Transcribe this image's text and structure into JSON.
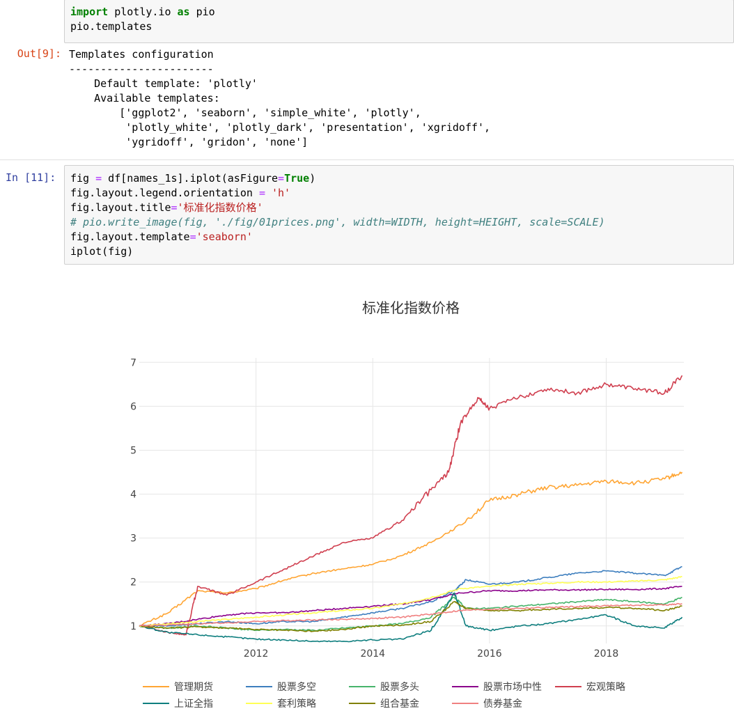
{
  "cell1": {
    "code_lines": [
      [
        {
          "t": "import",
          "c": "kw"
        },
        {
          "t": " plotly.io ",
          "c": ""
        },
        {
          "t": "as",
          "c": "kw"
        },
        {
          "t": " pio",
          "c": ""
        }
      ],
      [
        {
          "t": "pio.templates",
          "c": ""
        }
      ]
    ]
  },
  "out9": {
    "prompt": "Out[9]:",
    "lines": [
      "Templates configuration",
      "-----------------------",
      "    Default template: 'plotly'",
      "    Available templates:",
      "        ['ggplot2', 'seaborn', 'simple_white', 'plotly',",
      "         'plotly_white', 'plotly_dark', 'presentation', 'xgridoff',",
      "         'ygridoff', 'gridon', 'none']"
    ]
  },
  "cell11": {
    "prompt": "In  [11]:",
    "code_lines": [
      [
        {
          "t": "fig ",
          "c": ""
        },
        {
          "t": "=",
          "c": "op"
        },
        {
          "t": " df[names_1s].iplot(asFigure",
          "c": ""
        },
        {
          "t": "=",
          "c": "op"
        },
        {
          "t": "True",
          "c": "kw"
        },
        {
          "t": ")",
          "c": ""
        }
      ],
      [
        {
          "t": "fig.layout.legend.orientation ",
          "c": ""
        },
        {
          "t": "=",
          "c": "op"
        },
        {
          "t": " ",
          "c": ""
        },
        {
          "t": "'h'",
          "c": "str"
        }
      ],
      [
        {
          "t": "fig.layout.title",
          "c": ""
        },
        {
          "t": "=",
          "c": "op"
        },
        {
          "t": "'标准化指数价格'",
          "c": "str"
        }
      ],
      [
        {
          "t": "# pio.write_image(fig, './fig/01prices.png', width=WIDTH, height=HEIGHT, scale=SCALE)",
          "c": "cmt"
        }
      ],
      [
        {
          "t": "fig.layout.template",
          "c": ""
        },
        {
          "t": "=",
          "c": "op"
        },
        {
          "t": "'seaborn'",
          "c": "str"
        }
      ],
      [
        {
          "t": "iplot(fig)",
          "c": ""
        }
      ]
    ]
  },
  "chart_data": {
    "type": "line",
    "title": "标准化指数价格",
    "xlabel": "",
    "ylabel": "",
    "xlim": [
      2010.0,
      2019.33
    ],
    "ylim": [
      0.6,
      7.1
    ],
    "xticks": [
      2012,
      2014,
      2016,
      2018
    ],
    "yticks": [
      1,
      2,
      3,
      4,
      5,
      6,
      7
    ],
    "grid": true,
    "legend_position": "bottom",
    "series": [
      {
        "name": "管理期货",
        "color": "#FFA533",
        "x": [
          2010.0,
          2010.5,
          2011.0,
          2011.5,
          2012.0,
          2012.5,
          2013.0,
          2013.5,
          2014.0,
          2014.5,
          2015.0,
          2015.5,
          2016.0,
          2016.5,
          2017.0,
          2017.5,
          2018.0,
          2018.5,
          2019.0,
          2019.3
        ],
        "y": [
          1.0,
          1.3,
          1.8,
          1.75,
          1.85,
          2.05,
          2.2,
          2.3,
          2.4,
          2.6,
          2.9,
          3.3,
          3.85,
          4.0,
          4.15,
          4.2,
          4.3,
          4.25,
          4.35,
          4.5
        ]
      },
      {
        "name": "股票多空",
        "color": "#3D7EBE",
        "x": [
          2010.0,
          2010.5,
          2011.0,
          2011.5,
          2012.0,
          2012.5,
          2013.0,
          2013.5,
          2014.0,
          2014.5,
          2015.0,
          2015.4,
          2015.6,
          2016.0,
          2016.5,
          2017.0,
          2017.5,
          2018.0,
          2018.5,
          2019.0,
          2019.3
        ],
        "y": [
          1.0,
          1.0,
          1.05,
          1.1,
          1.05,
          1.1,
          1.1,
          1.2,
          1.3,
          1.4,
          1.55,
          1.8,
          2.05,
          1.95,
          2.0,
          2.1,
          2.2,
          2.25,
          2.2,
          2.15,
          2.35
        ]
      },
      {
        "name": "股票多头",
        "color": "#47B46B",
        "x": [
          2010.0,
          2010.5,
          2011.0,
          2011.5,
          2012.0,
          2012.5,
          2013.0,
          2013.5,
          2014.0,
          2014.5,
          2015.0,
          2015.4,
          2015.6,
          2016.0,
          2016.5,
          2017.0,
          2017.5,
          2018.0,
          2018.5,
          2019.0,
          2019.3
        ],
        "y": [
          1.0,
          0.95,
          1.0,
          0.95,
          0.9,
          0.92,
          0.9,
          0.95,
          1.0,
          1.05,
          1.2,
          1.65,
          1.4,
          1.4,
          1.45,
          1.5,
          1.55,
          1.6,
          1.55,
          1.5,
          1.65
        ]
      },
      {
        "name": "股票市场中性",
        "color": "#8B008B",
        "x": [
          2010.0,
          2010.5,
          2011.0,
          2011.5,
          2012.0,
          2012.5,
          2013.0,
          2013.5,
          2014.0,
          2014.5,
          2015.0,
          2015.5,
          2016.0,
          2016.5,
          2017.0,
          2017.5,
          2018.0,
          2018.5,
          2019.0,
          2019.3
        ],
        "y": [
          1.0,
          1.05,
          1.15,
          1.25,
          1.3,
          1.3,
          1.35,
          1.4,
          1.45,
          1.5,
          1.6,
          1.75,
          1.8,
          1.8,
          1.82,
          1.82,
          1.83,
          1.83,
          1.85,
          1.9
        ]
      },
      {
        "name": "宏观策略",
        "color": "#D03F4F",
        "x": [
          2010.0,
          2010.5,
          2010.8,
          2011.0,
          2011.5,
          2012.0,
          2012.5,
          2013.0,
          2013.5,
          2014.0,
          2014.5,
          2015.0,
          2015.3,
          2015.5,
          2015.8,
          2016.0,
          2016.5,
          2017.0,
          2017.5,
          2018.0,
          2018.5,
          2019.0,
          2019.3
        ],
        "y": [
          1.0,
          0.85,
          0.8,
          1.9,
          1.7,
          2.0,
          2.3,
          2.6,
          2.9,
          3.0,
          3.4,
          4.1,
          4.5,
          5.6,
          6.2,
          5.95,
          6.2,
          6.4,
          6.3,
          6.5,
          6.4,
          6.3,
          6.7
        ]
      },
      {
        "name": "上证全指",
        "color": "#0E7E7E",
        "x": [
          2010.0,
          2010.5,
          2011.0,
          2011.5,
          2012.0,
          2012.5,
          2013.0,
          2013.5,
          2014.0,
          2014.5,
          2015.0,
          2015.4,
          2015.6,
          2016.0,
          2016.5,
          2017.0,
          2017.5,
          2018.0,
          2018.5,
          2019.0,
          2019.3
        ],
        "y": [
          1.0,
          0.85,
          0.8,
          0.75,
          0.7,
          0.68,
          0.65,
          0.65,
          0.68,
          0.7,
          0.9,
          1.75,
          1.0,
          0.9,
          1.0,
          1.05,
          1.15,
          1.25,
          1.0,
          0.95,
          1.2
        ]
      },
      {
        "name": "套利策略",
        "color": "#FFFF55",
        "x": [
          2010.0,
          2010.5,
          2011.0,
          2011.5,
          2012.0,
          2012.5,
          2013.0,
          2013.5,
          2014.0,
          2014.5,
          2015.0,
          2015.5,
          2016.0,
          2016.5,
          2017.0,
          2017.5,
          2018.0,
          2018.5,
          2019.0,
          2019.3
        ],
        "y": [
          1.0,
          1.05,
          1.1,
          1.15,
          1.2,
          1.25,
          1.3,
          1.35,
          1.4,
          1.5,
          1.65,
          1.85,
          1.9,
          1.95,
          1.97,
          2.0,
          2.0,
          2.02,
          2.05,
          2.12
        ]
      },
      {
        "name": "组合基金",
        "color": "#808000",
        "x": [
          2010.0,
          2010.5,
          2011.0,
          2011.5,
          2012.0,
          2012.5,
          2013.0,
          2013.5,
          2014.0,
          2014.5,
          2015.0,
          2015.4,
          2015.6,
          2016.0,
          2016.5,
          2017.0,
          2017.5,
          2018.0,
          2018.5,
          2019.0,
          2019.3
        ],
        "y": [
          1.0,
          0.95,
          0.98,
          0.95,
          0.92,
          0.9,
          0.88,
          0.92,
          1.0,
          1.02,
          1.1,
          1.55,
          1.4,
          1.35,
          1.35,
          1.38,
          1.4,
          1.42,
          1.4,
          1.35,
          1.45
        ]
      },
      {
        "name": "债券基金",
        "color": "#F08080",
        "x": [
          2010.0,
          2010.5,
          2011.0,
          2011.5,
          2012.0,
          2012.5,
          2013.0,
          2013.5,
          2014.0,
          2014.5,
          2015.0,
          2015.5,
          2016.0,
          2016.5,
          2017.0,
          2017.5,
          2018.0,
          2018.5,
          2019.0,
          2019.3
        ],
        "y": [
          1.0,
          1.02,
          1.05,
          1.07,
          1.1,
          1.12,
          1.14,
          1.15,
          1.17,
          1.2,
          1.27,
          1.35,
          1.38,
          1.4,
          1.42,
          1.44,
          1.46,
          1.47,
          1.48,
          1.5
        ]
      }
    ]
  }
}
